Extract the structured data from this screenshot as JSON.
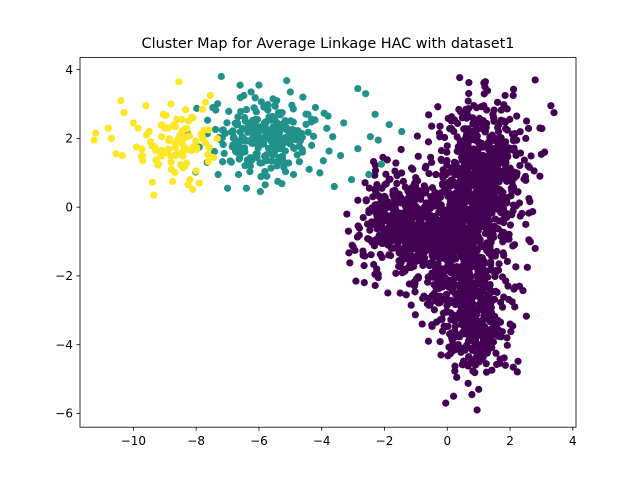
{
  "chart_data": {
    "type": "scatter",
    "title": "Cluster Map for Average Linkage HAC with dataset1",
    "xlabel": "",
    "ylabel": "",
    "xlim": [
      -11.7,
      4.1
    ],
    "ylim": [
      -6.4,
      4.35
    ],
    "xticks": [
      -10,
      -8,
      -6,
      -4,
      -2,
      0,
      2,
      4
    ],
    "yticks": [
      -6,
      -4,
      -2,
      0,
      2,
      4
    ],
    "xtick_labels": [
      "−10",
      "−8",
      "−6",
      "−4",
      "−2",
      "0",
      "2",
      "4"
    ],
    "ytick_labels": [
      "−6",
      "−4",
      "−2",
      "0",
      "2",
      "4"
    ],
    "grid": false,
    "legend": "none",
    "series": [
      {
        "color": "#fde725",
        "points": [
          [
            -11.2,
            2.15
          ],
          [
            -11.25,
            1.95
          ],
          [
            -10.7,
            2.0
          ],
          [
            -10.4,
            3.1
          ],
          [
            -10.3,
            2.75
          ],
          [
            -10.55,
            1.55
          ],
          [
            -10.35,
            1.5
          ],
          [
            -10.0,
            2.45
          ],
          [
            -9.85,
            2.3
          ],
          [
            -9.6,
            2.95
          ],
          [
            -9.5,
            2.2
          ],
          [
            -9.45,
            1.9
          ],
          [
            -9.35,
            0.35
          ],
          [
            -9.2,
            1.25
          ],
          [
            -9.05,
            2.7
          ],
          [
            -8.9,
            2.3
          ],
          [
            -8.8,
            3.0
          ],
          [
            -8.75,
            0.75
          ],
          [
            -8.65,
            1.5
          ],
          [
            -8.55,
            3.65
          ],
          [
            -8.45,
            2.55
          ],
          [
            -8.35,
            1.2
          ],
          [
            -8.3,
            2.05
          ],
          [
            -8.2,
            0.8
          ],
          [
            -8.1,
            2.6
          ],
          [
            -8.0,
            1.05
          ],
          [
            -7.9,
            0.7
          ],
          [
            -7.8,
            2.85
          ],
          [
            -7.7,
            3.05
          ],
          [
            -7.6,
            2.25
          ],
          [
            -7.55,
            3.25
          ],
          [
            -7.45,
            1.45
          ],
          [
            -8.15,
            1.65
          ],
          [
            -9.9,
            1.75
          ],
          [
            -10.8,
            2.3
          ],
          [
            -9.7,
            1.35
          ],
          [
            -8.6,
            1.95
          ],
          [
            -8.9,
            1.6
          ],
          [
            -9.1,
            2.05
          ],
          [
            -8.45,
            1.85
          ]
        ],
        "blob": {
          "cx": -8.45,
          "cy": 1.75,
          "sx": 0.55,
          "sy": 0.45,
          "n": 70
        }
      },
      {
        "color": "#21918c",
        "points": [
          [
            -7.2,
            3.8
          ],
          [
            -6.6,
            3.55
          ],
          [
            -6.25,
            3.35
          ],
          [
            -6.0,
            3.55
          ],
          [
            -5.55,
            3.15
          ],
          [
            -5.0,
            3.35
          ],
          [
            -4.6,
            3.2
          ],
          [
            -4.2,
            2.9
          ],
          [
            -3.8,
            2.65
          ],
          [
            -3.3,
            2.45
          ],
          [
            -2.85,
            3.45
          ],
          [
            -2.6,
            3.3
          ],
          [
            -2.3,
            2.7
          ],
          [
            -1.85,
            2.4
          ],
          [
            -1.45,
            2.2
          ],
          [
            -2.2,
            1.95
          ],
          [
            -2.85,
            1.7
          ],
          [
            -3.4,
            1.5
          ],
          [
            -3.95,
            1.35
          ],
          [
            -4.4,
            1.1
          ],
          [
            -4.9,
            0.95
          ],
          [
            -5.4,
            0.75
          ],
          [
            -5.8,
            0.65
          ],
          [
            -6.4,
            0.55
          ],
          [
            -6.65,
            0.95
          ],
          [
            -7.0,
            0.55
          ],
          [
            -7.3,
            0.95
          ],
          [
            -7.65,
            1.3
          ],
          [
            -7.9,
            1.75
          ],
          [
            -3.6,
            0.6
          ],
          [
            -3.05,
            0.8
          ],
          [
            -2.5,
            0.95
          ],
          [
            -2.1,
            1.25
          ],
          [
            -3.65,
            2.05
          ],
          [
            -2.45,
            2.05
          ]
        ],
        "blob": {
          "cx": -5.7,
          "cy": 2.0,
          "sx": 0.85,
          "sy": 0.5,
          "n": 260
        }
      },
      {
        "color": "#440154",
        "points": [
          [
            1.2,
            3.5
          ],
          [
            2.8,
            3.7
          ],
          [
            3.3,
            2.95
          ],
          [
            3.4,
            2.75
          ],
          [
            2.95,
            2.3
          ],
          [
            2.5,
            2.0
          ],
          [
            3.1,
            1.6
          ],
          [
            2.95,
            0.9
          ],
          [
            2.6,
            0.25
          ],
          [
            2.5,
            -0.5
          ],
          [
            2.8,
            -1.2
          ],
          [
            2.55,
            -1.75
          ],
          [
            2.3,
            -2.3
          ],
          [
            2.15,
            -2.9
          ],
          [
            2.0,
            -3.4
          ],
          [
            1.9,
            -3.8
          ],
          [
            1.55,
            -4.25
          ],
          [
            1.25,
            -4.8
          ],
          [
            1.0,
            -5.3
          ],
          [
            0.95,
            -5.9
          ],
          [
            0.2,
            -5.5
          ],
          [
            0.3,
            -4.95
          ],
          [
            -0.2,
            -4.3
          ],
          [
            -0.6,
            -3.9
          ],
          [
            -0.8,
            -3.4
          ],
          [
            -1.15,
            -2.85
          ],
          [
            -1.5,
            -2.5
          ],
          [
            -2.2,
            -2.05
          ],
          [
            -2.65,
            -1.7
          ],
          [
            -3.0,
            -1.15
          ],
          [
            -3.15,
            -0.7
          ],
          [
            -3.2,
            -0.2
          ],
          [
            -2.85,
            0.2
          ],
          [
            -2.3,
            0.5
          ],
          [
            -1.85,
            0.8
          ],
          [
            -1.1,
            1.1
          ],
          [
            -0.5,
            1.3
          ],
          [
            -0.25,
            2.15
          ],
          [
            0.2,
            2.55
          ],
          [
            0.6,
            2.85
          ],
          [
            1.6,
            3.05
          ],
          [
            2.1,
            3.25
          ],
          [
            -0.05,
            -5.7
          ],
          [
            1.85,
            -4.6
          ],
          [
            2.6,
            -0.95
          ]
        ],
        "blob": [
          {
            "cx": 1.1,
            "cy": 1.0,
            "sx": 0.65,
            "sy": 1.0,
            "n": 620
          },
          {
            "cx": -1.3,
            "cy": -0.5,
            "sx": 0.75,
            "sy": 0.7,
            "n": 480
          },
          {
            "cx": 0.3,
            "cy": -1.2,
            "sx": 0.8,
            "sy": 1.0,
            "n": 560
          },
          {
            "cx": 0.8,
            "cy": -3.3,
            "sx": 0.55,
            "sy": 0.75,
            "n": 320
          }
        ]
      }
    ]
  }
}
